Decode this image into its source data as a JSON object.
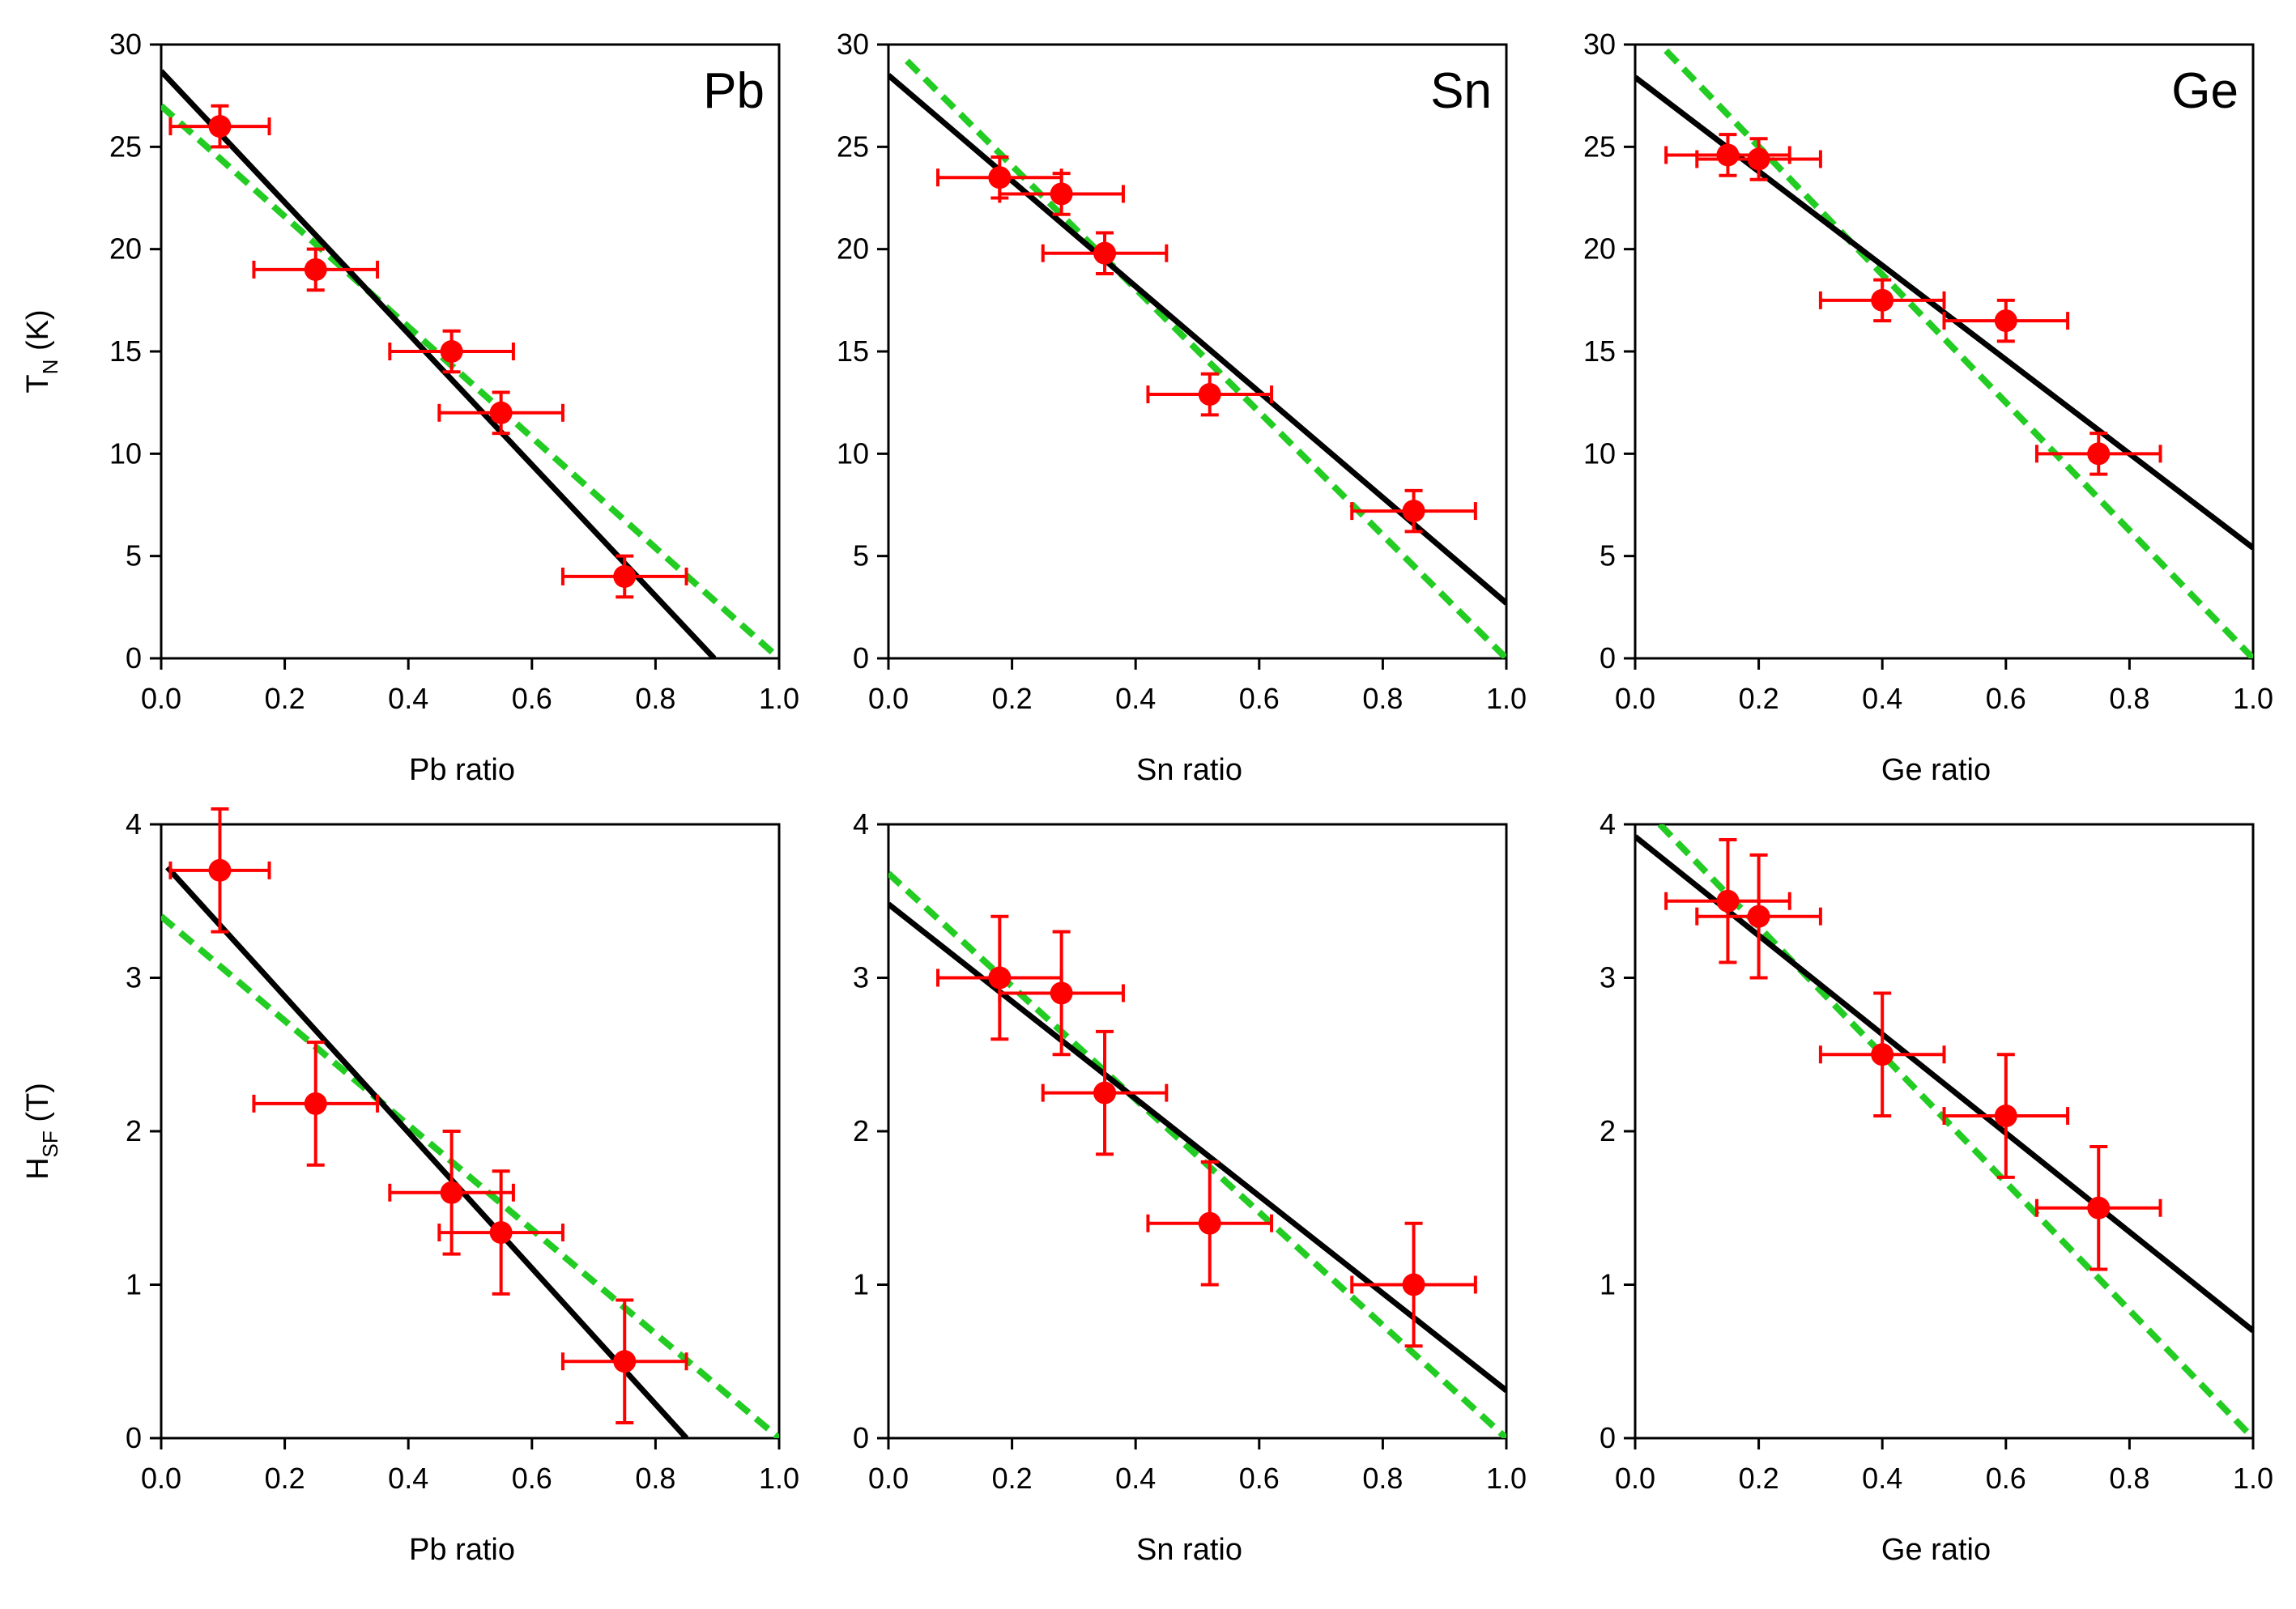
{
  "figure": {
    "background": "#ffffff",
    "colors": {
      "data": "#ff0000",
      "fit": "#000000",
      "model": "#22cc22"
    }
  },
  "chart_data": [
    {
      "type": "scatter",
      "panel": "Pb",
      "row": 0,
      "col": 0,
      "xlabel": "Pb ratio",
      "ylabel_main": "T",
      "ylabel_sub": "N",
      "ylabel_rest": " (K)",
      "xlim": [
        0,
        1
      ],
      "ylim": [
        0,
        30
      ],
      "xticks": [
        "0.0",
        "0.2",
        "0.4",
        "0.6",
        "0.8",
        "1.0"
      ],
      "yticks": [
        "0",
        "5",
        "10",
        "15",
        "20",
        "25",
        "30"
      ],
      "points": [
        {
          "x": 0.095,
          "y": 26.0,
          "xerr": 0.08,
          "yerr": 1.0
        },
        {
          "x": 0.25,
          "y": 19.0,
          "xerr": 0.1,
          "yerr": 1.0
        },
        {
          "x": 0.47,
          "y": 15.0,
          "xerr": 0.1,
          "yerr": 1.0
        },
        {
          "x": 0.55,
          "y": 12.0,
          "xerr": 0.1,
          "yerr": 1.0
        },
        {
          "x": 0.75,
          "y": 4.0,
          "xerr": 0.1,
          "yerr": 1.0
        }
      ],
      "fit_line": [
        [
          0.0,
          28.7
        ],
        [
          0.895,
          0.0
        ]
      ],
      "model_line": [
        [
          0.0,
          27.0
        ],
        [
          1.0,
          0.0
        ]
      ]
    },
    {
      "type": "scatter",
      "panel": "Sn",
      "row": 0,
      "col": 1,
      "xlabel": "Sn ratio",
      "ylabel_main": "",
      "ylabel_sub": "",
      "ylabel_rest": "",
      "xlim": [
        0,
        1
      ],
      "ylim": [
        0,
        30
      ],
      "xticks": [
        "0.0",
        "0.2",
        "0.4",
        "0.6",
        "0.8",
        "1.0"
      ],
      "yticks": [
        "0",
        "5",
        "10",
        "15",
        "20",
        "25",
        "30"
      ],
      "points": [
        {
          "x": 0.18,
          "y": 23.5,
          "xerr": 0.1,
          "yerr": 1.0
        },
        {
          "x": 0.28,
          "y": 22.7,
          "xerr": 0.1,
          "yerr": 1.0
        },
        {
          "x": 0.35,
          "y": 19.8,
          "xerr": 0.1,
          "yerr": 1.0
        },
        {
          "x": 0.52,
          "y": 12.9,
          "xerr": 0.1,
          "yerr": 1.0
        },
        {
          "x": 0.85,
          "y": 7.2,
          "xerr": 0.1,
          "yerr": 1.0
        }
      ],
      "fit_line": [
        [
          0.0,
          28.5
        ],
        [
          1.0,
          2.7
        ]
      ],
      "model_line": [
        [
          0.03,
          29.2
        ],
        [
          1.0,
          0.0
        ]
      ]
    },
    {
      "type": "scatter",
      "panel": "Ge",
      "row": 0,
      "col": 2,
      "xlabel": "Ge ratio",
      "ylabel_main": "",
      "ylabel_sub": "",
      "ylabel_rest": "",
      "xlim": [
        0,
        1
      ],
      "ylim": [
        0,
        30
      ],
      "xticks": [
        "0.0",
        "0.2",
        "0.4",
        "0.6",
        "0.8",
        "1.0"
      ],
      "yticks": [
        "0",
        "5",
        "10",
        "15",
        "20",
        "25",
        "30"
      ],
      "points": [
        {
          "x": 0.15,
          "y": 24.6,
          "xerr": 0.1,
          "yerr": 1.0
        },
        {
          "x": 0.2,
          "y": 24.4,
          "xerr": 0.1,
          "yerr": 1.0
        },
        {
          "x": 0.4,
          "y": 17.5,
          "xerr": 0.1,
          "yerr": 1.0
        },
        {
          "x": 0.6,
          "y": 16.5,
          "xerr": 0.1,
          "yerr": 1.0
        },
        {
          "x": 0.75,
          "y": 10.0,
          "xerr": 0.1,
          "yerr": 1.0
        }
      ],
      "fit_line": [
        [
          0.0,
          28.4
        ],
        [
          1.0,
          5.4
        ]
      ],
      "model_line": [
        [
          0.05,
          29.7
        ],
        [
          1.0,
          0.0
        ]
      ]
    },
    {
      "type": "scatter",
      "panel": "",
      "row": 1,
      "col": 0,
      "xlabel": "Pb ratio",
      "ylabel_main": "H",
      "ylabel_sub": "SF",
      "ylabel_rest": " (T)",
      "xlim": [
        0,
        1
      ],
      "ylim": [
        0,
        4
      ],
      "xticks": [
        "0.0",
        "0.2",
        "0.4",
        "0.6",
        "0.8",
        "1.0"
      ],
      "yticks": [
        "0",
        "1",
        "2",
        "3",
        "4"
      ],
      "points": [
        {
          "x": 0.095,
          "y": 3.7,
          "xerr": 0.08,
          "yerr": 0.4
        },
        {
          "x": 0.25,
          "y": 2.18,
          "xerr": 0.1,
          "yerr": 0.4
        },
        {
          "x": 0.47,
          "y": 1.6,
          "xerr": 0.1,
          "yerr": 0.4
        },
        {
          "x": 0.55,
          "y": 1.34,
          "xerr": 0.1,
          "yerr": 0.4
        },
        {
          "x": 0.75,
          "y": 0.5,
          "xerr": 0.1,
          "yerr": 0.4
        }
      ],
      "fit_line": [
        [
          0.01,
          3.72
        ],
        [
          0.85,
          0.0
        ]
      ],
      "model_line": [
        [
          0.0,
          3.4
        ],
        [
          1.0,
          0.0
        ]
      ]
    },
    {
      "type": "scatter",
      "panel": "",
      "row": 1,
      "col": 1,
      "xlabel": "Sn ratio",
      "ylabel_main": "",
      "ylabel_sub": "",
      "ylabel_rest": "",
      "xlim": [
        0,
        1
      ],
      "ylim": [
        0,
        4
      ],
      "xticks": [
        "0.0",
        "0.2",
        "0.4",
        "0.6",
        "0.8",
        "1.0"
      ],
      "yticks": [
        "0",
        "1",
        "2",
        "3",
        "4"
      ],
      "points": [
        {
          "x": 0.18,
          "y": 3.0,
          "xerr": 0.1,
          "yerr": 0.4
        },
        {
          "x": 0.28,
          "y": 2.9,
          "xerr": 0.1,
          "yerr": 0.4
        },
        {
          "x": 0.35,
          "y": 2.25,
          "xerr": 0.1,
          "yerr": 0.4
        },
        {
          "x": 0.52,
          "y": 1.4,
          "xerr": 0.1,
          "yerr": 0.4
        },
        {
          "x": 0.85,
          "y": 1.0,
          "xerr": 0.1,
          "yerr": 0.4
        }
      ],
      "fit_line": [
        [
          0.0,
          3.48
        ],
        [
          1.0,
          0.31
        ]
      ],
      "model_line": [
        [
          0.0,
          3.68
        ],
        [
          1.0,
          0.0
        ]
      ]
    },
    {
      "type": "scatter",
      "panel": "",
      "row": 1,
      "col": 2,
      "xlabel": "Ge ratio",
      "ylabel_main": "",
      "ylabel_sub": "",
      "ylabel_rest": "",
      "xlim": [
        0,
        1
      ],
      "ylim": [
        0,
        4
      ],
      "xticks": [
        "0.0",
        "0.2",
        "0.4",
        "0.6",
        "0.8",
        "1.0"
      ],
      "yticks": [
        "0",
        "1",
        "2",
        "3",
        "4"
      ],
      "points": [
        {
          "x": 0.15,
          "y": 3.5,
          "xerr": 0.1,
          "yerr": 0.4
        },
        {
          "x": 0.2,
          "y": 3.4,
          "xerr": 0.1,
          "yerr": 0.4
        },
        {
          "x": 0.4,
          "y": 2.5,
          "xerr": 0.1,
          "yerr": 0.4
        },
        {
          "x": 0.6,
          "y": 2.1,
          "xerr": 0.1,
          "yerr": 0.4
        },
        {
          "x": 0.75,
          "y": 1.5,
          "xerr": 0.1,
          "yerr": 0.4
        }
      ],
      "fit_line": [
        [
          0.0,
          3.92
        ],
        [
          1.0,
          0.7
        ]
      ],
      "model_line": [
        [
          0.04,
          4.0
        ],
        [
          1.0,
          0.0
        ]
      ]
    }
  ]
}
